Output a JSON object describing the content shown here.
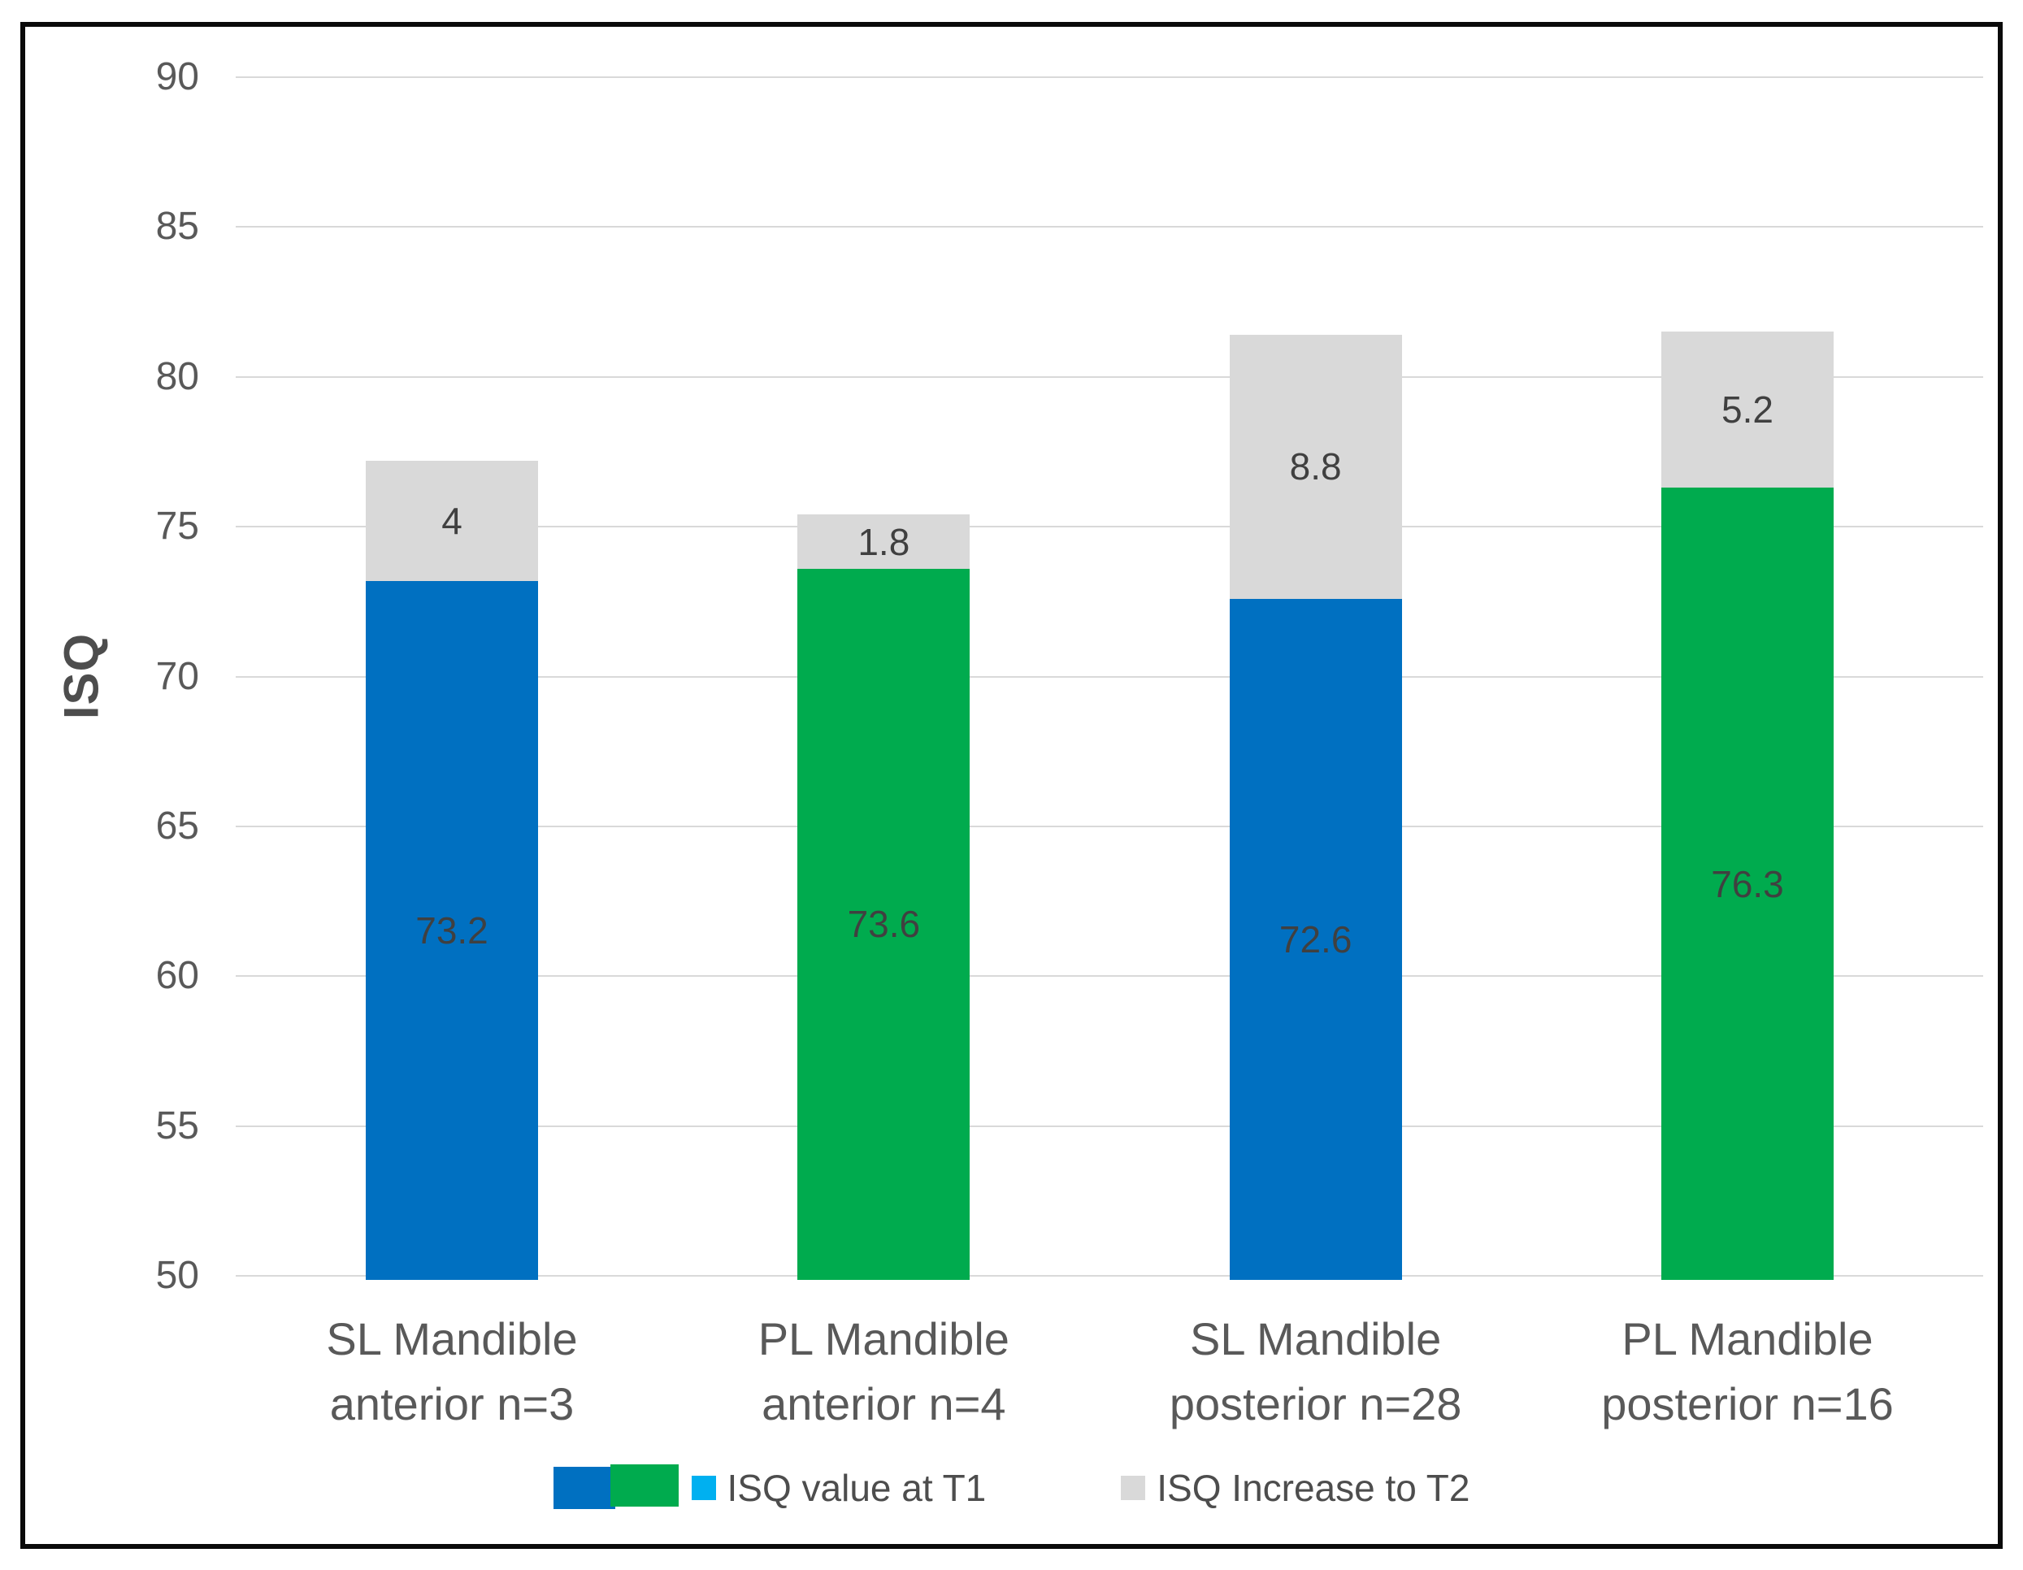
{
  "chart_data": {
    "type": "bar",
    "stacked": true,
    "title": "",
    "xlabel": "",
    "ylabel": "ISQ",
    "ylim": [
      50,
      90
    ],
    "yticks": [
      50,
      55,
      60,
      65,
      70,
      75,
      80,
      85,
      90
    ],
    "grid": true,
    "legend_position": "bottom",
    "categories": [
      "SL Mandible anterior n=3",
      "PL Mandible anterior n=4",
      "SL Mandible posterior n=28",
      "PL Mandible posterior n=16"
    ],
    "category_lines": [
      [
        "SL Mandible",
        "anterior n=3"
      ],
      [
        "PL Mandible",
        "anterior n=4"
      ],
      [
        "SL Mandible",
        "posterior n=28"
      ],
      [
        "PL Mandible",
        "posterior n=16"
      ]
    ],
    "series": [
      {
        "name": "ISQ value at T1",
        "values": [
          73.2,
          73.6,
          72.6,
          76.3
        ],
        "bar_colors": [
          "#0070c1",
          "#00ab4e",
          "#0070c1",
          "#00ab4e"
        ]
      },
      {
        "name": "ISQ Increase to T2",
        "values": [
          4,
          1.8,
          8.8,
          5.2
        ],
        "bar_colors": [
          "#d9d9d9",
          "#d9d9d9",
          "#d9d9d9",
          "#d9d9d9"
        ]
      }
    ]
  },
  "legend": {
    "swatch_blue": "#0070c1",
    "swatch_green": "#00ab4e",
    "items": [
      {
        "label": "ISQ value at T1",
        "marker_color": "#00b0f0"
      },
      {
        "label": "ISQ Increase to T2",
        "marker_color": "#d9d9d9"
      }
    ]
  },
  "colors": {
    "gridline": "#d9d9d9",
    "axis_text": "#595959",
    "data_label_text": "#404040",
    "frame_border": "#0a0a0a",
    "background": "#ffffff"
  }
}
